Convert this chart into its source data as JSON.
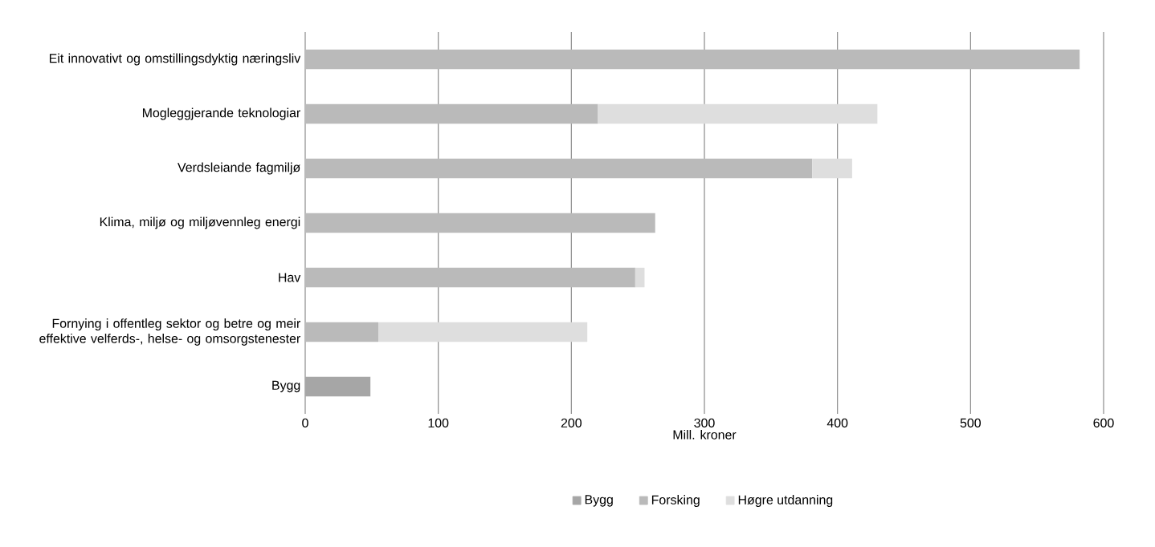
{
  "chart_data": {
    "type": "bar",
    "orientation": "horizontal",
    "stacked": true,
    "xlabel": "Mill. kroner",
    "categories": [
      "Eit innovativt og omstillingsdyktig næringsliv",
      "Mogleggjerande teknologiar",
      "Verdsleiande fagmiljø",
      "Klima, miljø og miljøvennleg energi",
      "Hav",
      "Fornying i offentleg sektor og betre og meir effektive velferds-, helse- og omsorgstenester",
      "Bygg"
    ],
    "series": [
      {
        "name": "Bygg",
        "color": "#a6a6a6",
        "values": [
          null,
          null,
          null,
          null,
          null,
          null,
          49
        ]
      },
      {
        "name": "Forsking",
        "color": "#bababa",
        "values": [
          582,
          220,
          381,
          263,
          248,
          55,
          null
        ]
      },
      {
        "name": "Høgre utdanning",
        "color": "#dedede",
        "values": [
          null,
          210,
          30,
          null,
          7,
          157,
          null
        ]
      }
    ],
    "xlim": [
      0,
      600
    ],
    "xticks": [
      0,
      100,
      200,
      300,
      400,
      500,
      600
    ],
    "grid": "x",
    "legend": "bottom"
  }
}
